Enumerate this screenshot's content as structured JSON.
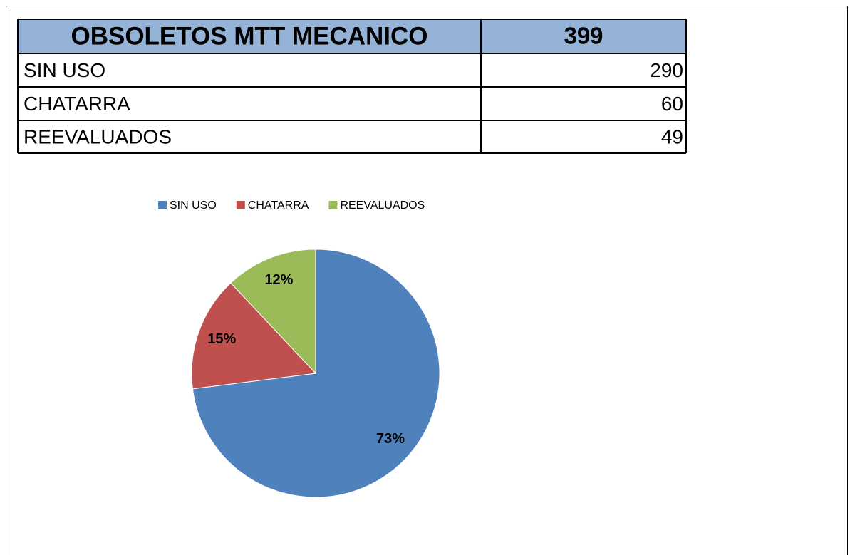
{
  "table": {
    "header": [
      "OBSOLETOS MTT MECANICO",
      399
    ],
    "rows": [
      [
        "SIN USO",
        290
      ],
      [
        "CHATARRA",
        60
      ],
      [
        "REEVALUADOS",
        49
      ]
    ],
    "header_color": "#95b3d7"
  },
  "chart_data": {
    "type": "pie",
    "categories": [
      "SIN USO",
      "CHATARRA",
      "REEVALUADOS"
    ],
    "values": [
      73,
      15,
      12
    ],
    "value_labels": [
      "73%",
      "15%",
      "12%"
    ],
    "colors": [
      "#4f81bd",
      "#c0504d",
      "#9bbb59"
    ],
    "legend": "top"
  }
}
